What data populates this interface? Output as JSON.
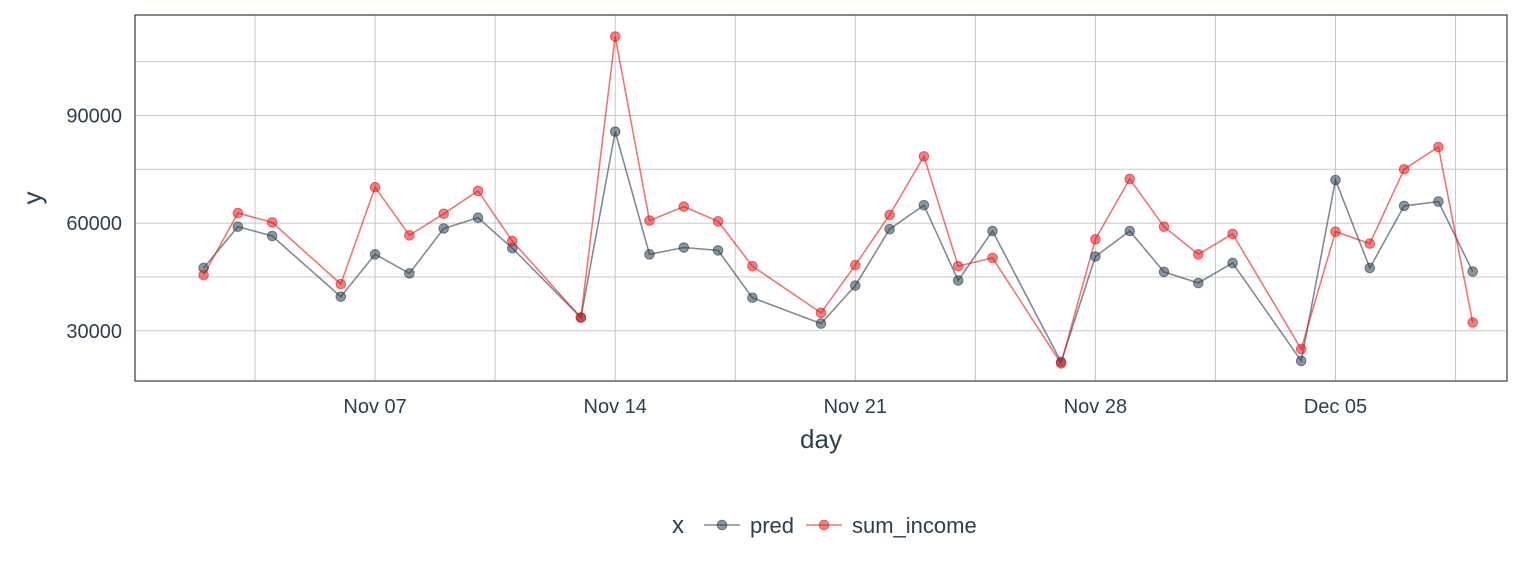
{
  "chart_data": {
    "type": "line",
    "xlabel": "day",
    "ylabel": "y",
    "x": [
      "2021-11-02",
      "2021-11-03",
      "2021-11-04",
      "2021-11-06",
      "2021-11-07",
      "2021-11-08",
      "2021-11-09",
      "2021-11-10",
      "2021-11-11",
      "2021-11-13",
      "2021-11-14",
      "2021-11-15",
      "2021-11-16",
      "2021-11-17",
      "2021-11-18",
      "2021-11-20",
      "2021-11-21",
      "2021-11-22",
      "2021-11-23",
      "2021-11-24",
      "2021-11-25",
      "2021-11-27",
      "2021-11-28",
      "2021-11-29",
      "2021-11-30",
      "2021-12-01",
      "2021-12-02",
      "2021-12-04",
      "2021-12-05",
      "2021-12-06",
      "2021-12-07",
      "2021-12-08",
      "2021-12-09"
    ],
    "series": [
      {
        "name": "pred",
        "color": "#2c3e50",
        "values": [
          47500,
          59000,
          56400,
          39500,
          51300,
          46000,
          58500,
          61500,
          53000,
          33700,
          85500,
          51300,
          53200,
          52400,
          39200,
          32000,
          42600,
          58300,
          65000,
          44000,
          57800,
          21300,
          50700,
          57800,
          46400,
          43300,
          48900,
          21600,
          72000,
          47500,
          64800,
          66000,
          46500
        ]
      },
      {
        "name": "sum_income",
        "color": "#e31a1c",
        "values": [
          45500,
          62800,
          60200,
          43000,
          70000,
          56600,
          62600,
          69000,
          55000,
          33700,
          112000,
          60700,
          64600,
          60500,
          48000,
          35000,
          48300,
          62300,
          78600,
          48000,
          50300,
          20900,
          55500,
          72300,
          59000,
          51300,
          57000,
          24900,
          57600,
          54300,
          75000,
          81200,
          32300
        ]
      }
    ],
    "xticks": [
      {
        "date": "2021-11-07",
        "label": "Nov 07"
      },
      {
        "date": "2021-11-14",
        "label": "Nov 14"
      },
      {
        "date": "2021-11-21",
        "label": "Nov 21"
      },
      {
        "date": "2021-11-28",
        "label": "Nov 28"
      },
      {
        "date": "2021-12-05",
        "label": "Dec 05"
      }
    ],
    "yticks": [
      30000,
      60000,
      90000
    ],
    "ylim": [
      16000,
      118000
    ],
    "xlim": [
      "2021-10-31",
      "2021-12-10"
    ],
    "grid": true,
    "legend": {
      "title": "x",
      "position": "bottom"
    }
  }
}
